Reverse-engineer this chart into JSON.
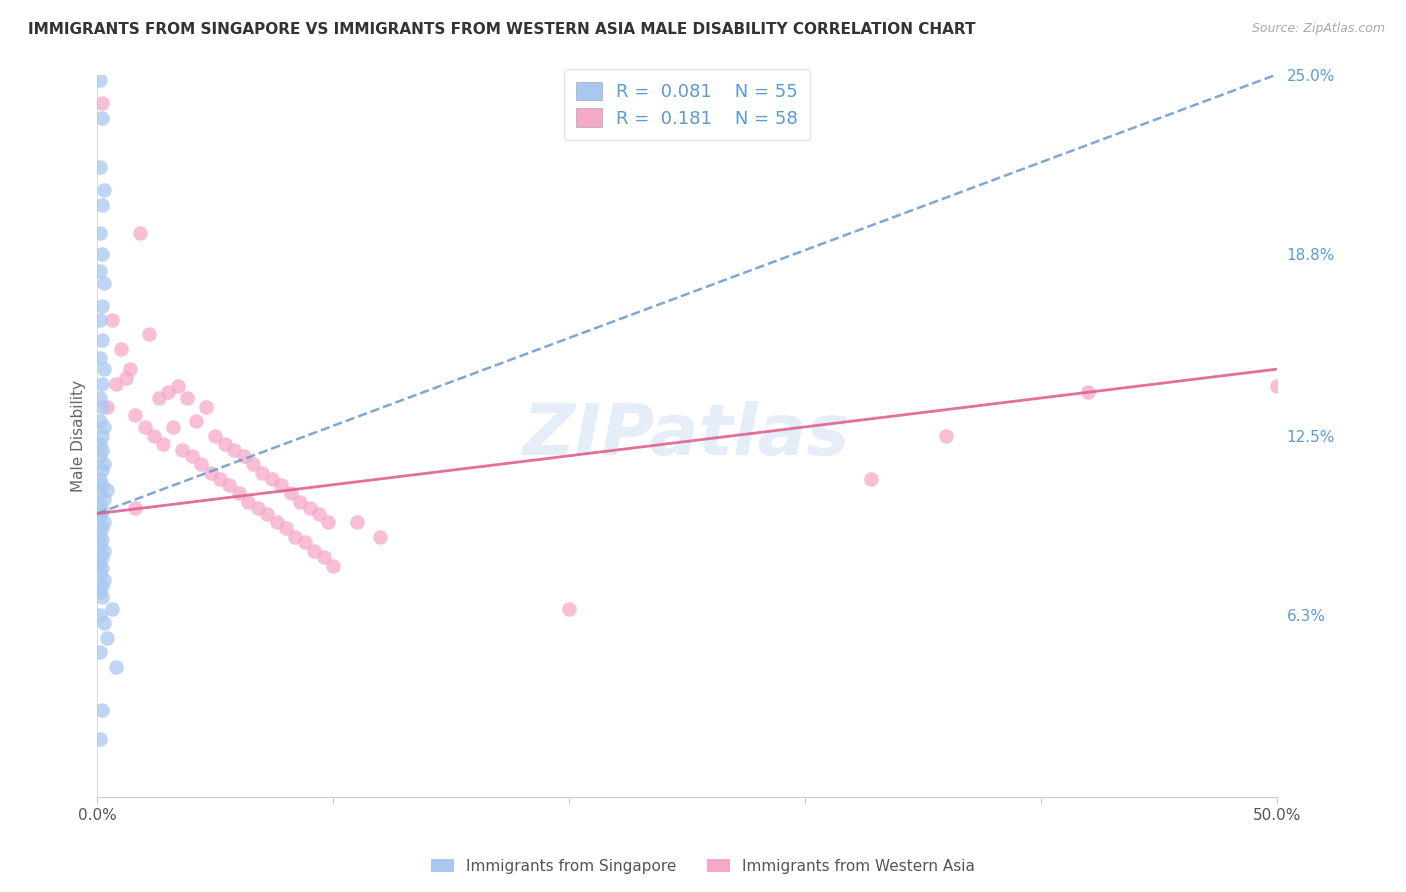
{
  "title": "IMMIGRANTS FROM SINGAPORE VS IMMIGRANTS FROM WESTERN ASIA MALE DISABILITY CORRELATION CHART",
  "source": "Source: ZipAtlas.com",
  "ylabel": "Male Disability",
  "x_min": 0.0,
  "x_max": 0.5,
  "y_min": 0.0,
  "y_max": 0.25,
  "y_tick_labels_right": [
    "25.0%",
    "18.8%",
    "12.5%",
    "6.3%"
  ],
  "y_ticks_right": [
    0.25,
    0.188,
    0.125,
    0.063
  ],
  "legend_R1": "0.081",
  "legend_N1": "55",
  "legend_R2": "0.181",
  "legend_N2": "58",
  "color_singapore": "#A8C8F0",
  "color_western_asia": "#F5A8C8",
  "color_singapore_line": "#6699CC",
  "color_western_asia_line": "#E06090",
  "watermark_text": "ZIPatlas",
  "sg_x": [
    0.001,
    0.002,
    0.001,
    0.003,
    0.002,
    0.001,
    0.002,
    0.001,
    0.003,
    0.002,
    0.001,
    0.002,
    0.001,
    0.003,
    0.002,
    0.001,
    0.002,
    0.001,
    0.003,
    0.002,
    0.001,
    0.002,
    0.001,
    0.003,
    0.002,
    0.001,
    0.002,
    0.004,
    0.001,
    0.003,
    0.001,
    0.002,
    0.001,
    0.003,
    0.002,
    0.001,
    0.002,
    0.001,
    0.003,
    0.002,
    0.001,
    0.002,
    0.001,
    0.003,
    0.002,
    0.001,
    0.002,
    0.006,
    0.001,
    0.003,
    0.004,
    0.001,
    0.008,
    0.002,
    0.001
  ],
  "sg_y": [
    0.248,
    0.235,
    0.218,
    0.21,
    0.205,
    0.195,
    0.188,
    0.182,
    0.178,
    0.17,
    0.165,
    0.158,
    0.152,
    0.148,
    0.143,
    0.138,
    0.135,
    0.13,
    0.128,
    0.125,
    0.122,
    0.12,
    0.118,
    0.115,
    0.113,
    0.11,
    0.108,
    0.106,
    0.105,
    0.103,
    0.101,
    0.099,
    0.097,
    0.095,
    0.093,
    0.091,
    0.089,
    0.087,
    0.085,
    0.083,
    0.081,
    0.079,
    0.077,
    0.075,
    0.073,
    0.071,
    0.069,
    0.065,
    0.063,
    0.06,
    0.055,
    0.05,
    0.045,
    0.03,
    0.02
  ],
  "wa_x": [
    0.002,
    0.018,
    0.006,
    0.01,
    0.014,
    0.022,
    0.008,
    0.026,
    0.012,
    0.004,
    0.03,
    0.016,
    0.02,
    0.034,
    0.024,
    0.038,
    0.028,
    0.042,
    0.032,
    0.046,
    0.036,
    0.05,
    0.04,
    0.054,
    0.044,
    0.058,
    0.048,
    0.062,
    0.052,
    0.066,
    0.056,
    0.07,
    0.06,
    0.074,
    0.064,
    0.078,
    0.068,
    0.082,
    0.072,
    0.086,
    0.076,
    0.09,
    0.08,
    0.094,
    0.084,
    0.098,
    0.088,
    0.016,
    0.328,
    0.42,
    0.36,
    0.092,
    0.096,
    0.1,
    0.11,
    0.12,
    0.2,
    0.5
  ],
  "wa_y": [
    0.24,
    0.195,
    0.165,
    0.155,
    0.148,
    0.16,
    0.143,
    0.138,
    0.145,
    0.135,
    0.14,
    0.132,
    0.128,
    0.142,
    0.125,
    0.138,
    0.122,
    0.13,
    0.128,
    0.135,
    0.12,
    0.125,
    0.118,
    0.122,
    0.115,
    0.12,
    0.112,
    0.118,
    0.11,
    0.115,
    0.108,
    0.112,
    0.105,
    0.11,
    0.102,
    0.108,
    0.1,
    0.105,
    0.098,
    0.102,
    0.095,
    0.1,
    0.093,
    0.098,
    0.09,
    0.095,
    0.088,
    0.1,
    0.11,
    0.14,
    0.125,
    0.085,
    0.083,
    0.08,
    0.095,
    0.09,
    0.065,
    0.142
  ],
  "sg_trendline_x": [
    0.0,
    0.5
  ],
  "sg_trendline_y": [
    0.098,
    0.25
  ],
  "wa_trendline_x": [
    0.0,
    0.5
  ],
  "wa_trendline_y": [
    0.098,
    0.148
  ]
}
